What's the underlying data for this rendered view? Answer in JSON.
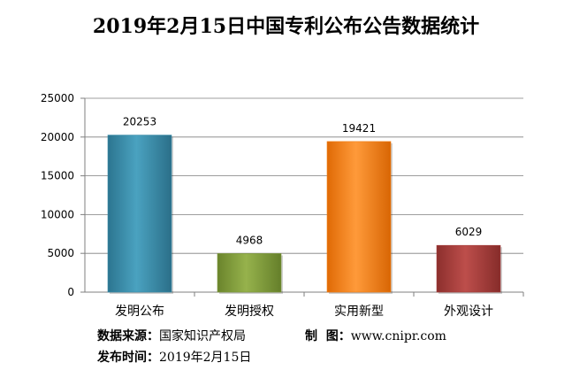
{
  "chart_data": {
    "type": "bar",
    "title": "2019年2月15日中国专利公布公告数据统计",
    "categories": [
      "发明公布",
      "发明授权",
      "实用新型",
      "外观设计"
    ],
    "values": [
      20253,
      4968,
      19421,
      6029
    ],
    "ylim": [
      0,
      25000
    ],
    "yticks": [
      "0",
      "5000",
      "10000",
      "15000",
      "20000",
      "25000"
    ],
    "grid": true,
    "xlabel": "",
    "ylabel": ""
  },
  "colors": {
    "bars": [
      "#3a8ca8",
      "#7e9a3a",
      "#f07c12",
      "#a33c3a"
    ],
    "grid": "#7f7f7f",
    "axis": "#7f7f7f"
  },
  "footer": {
    "source_label": "数据来源：",
    "source_value": "国家知识产权局",
    "credit_label": "制  图：",
    "credit_value": "www.cnipr.com",
    "date_label": "发布时间：",
    "date_value": "2019年2月15日"
  }
}
